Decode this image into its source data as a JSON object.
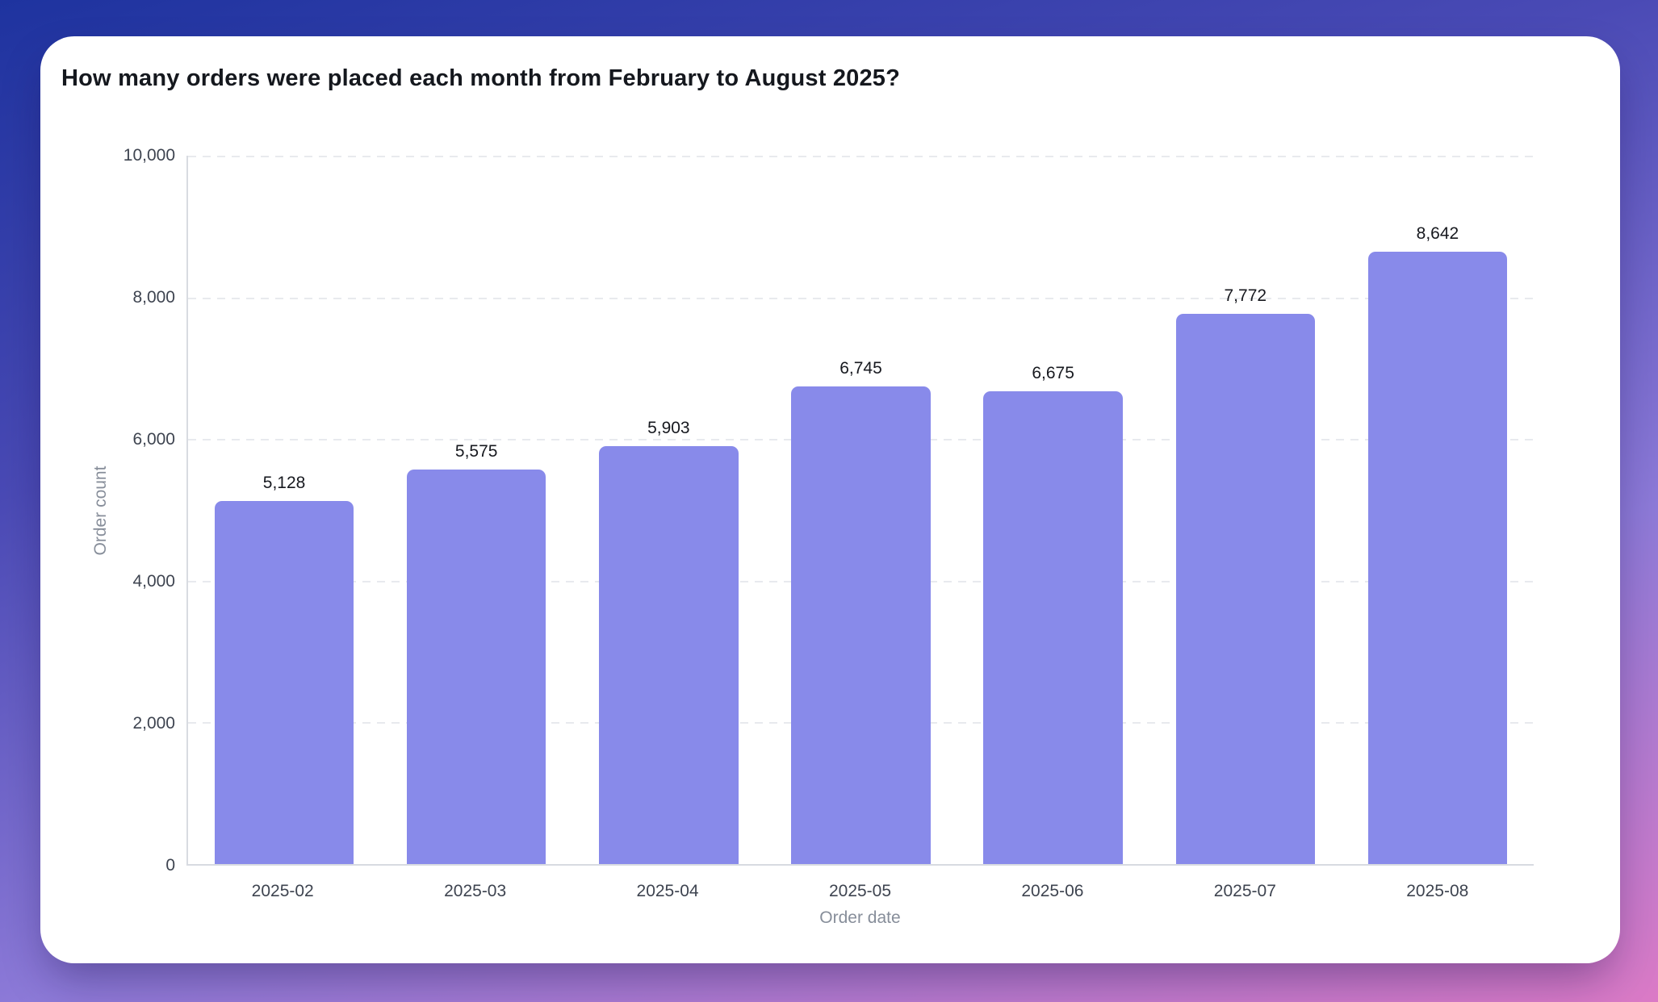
{
  "card": {
    "title": "How many orders were placed each month from February to August 2025?"
  },
  "chart_data": {
    "type": "bar",
    "title": "How many orders were placed each month from February to August 2025?",
    "categories": [
      "2025-02",
      "2025-03",
      "2025-04",
      "2025-05",
      "2025-06",
      "2025-07",
      "2025-08"
    ],
    "values": [
      5128,
      5575,
      5903,
      6745,
      6675,
      7772,
      8642
    ],
    "value_labels": [
      "5,128",
      "5,575",
      "5,903",
      "6,745",
      "6,675",
      "7,772",
      "8,642"
    ],
    "xlabel": "Order date",
    "ylabel": "Order count",
    "ylim": [
      0,
      10000
    ],
    "y_ticks": [
      0,
      2000,
      4000,
      6000,
      8000,
      10000
    ],
    "y_tick_labels": [
      "0",
      "2,000",
      "4,000",
      "6,000",
      "8,000",
      "10,000"
    ],
    "grid": "horizontal-dashed",
    "legend": "none",
    "bar_color": "#888aea"
  },
  "colors": {
    "bar": "#888aea",
    "card_background": "#ffffff",
    "background_gradient": [
      "#1e339f",
      "#4a4ab5",
      "#8d7ad8",
      "#db7ac6"
    ],
    "tick_text": "#3e4450",
    "axis_title_text": "#878e9a",
    "value_label_text": "#17191f",
    "gridline": "#e8eaee",
    "axis_line": "#d8dbe1"
  }
}
